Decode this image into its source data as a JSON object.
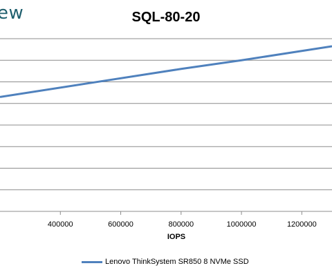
{
  "logo": {
    "text": "ew"
  },
  "chart_data": {
    "type": "line",
    "title": "SQL-80-20",
    "xlabel": "IOPS",
    "ylabel": "",
    "x_ticks": [
      400000,
      600000,
      800000,
      1000000,
      1200000
    ],
    "x_tick_labels": [
      "400000",
      "600000",
      "800000",
      "1000000",
      "1200000"
    ],
    "xlim": [
      200000,
      1300000
    ],
    "ylim": [
      0,
      8
    ],
    "y_gridlines": [
      1,
      2,
      3,
      4,
      5,
      6,
      7,
      8
    ],
    "grid": true,
    "legend_position": "bottom",
    "series": [
      {
        "name": "Lenovo ThinkSystem SR850 8 NVMe SSD",
        "color": "#4f81bd",
        "x": [
          200000,
          500000,
          800000,
          1000000,
          1300000
        ],
        "y": [
          5.3,
          5.95,
          6.6,
          7.0,
          7.65
        ]
      }
    ]
  }
}
